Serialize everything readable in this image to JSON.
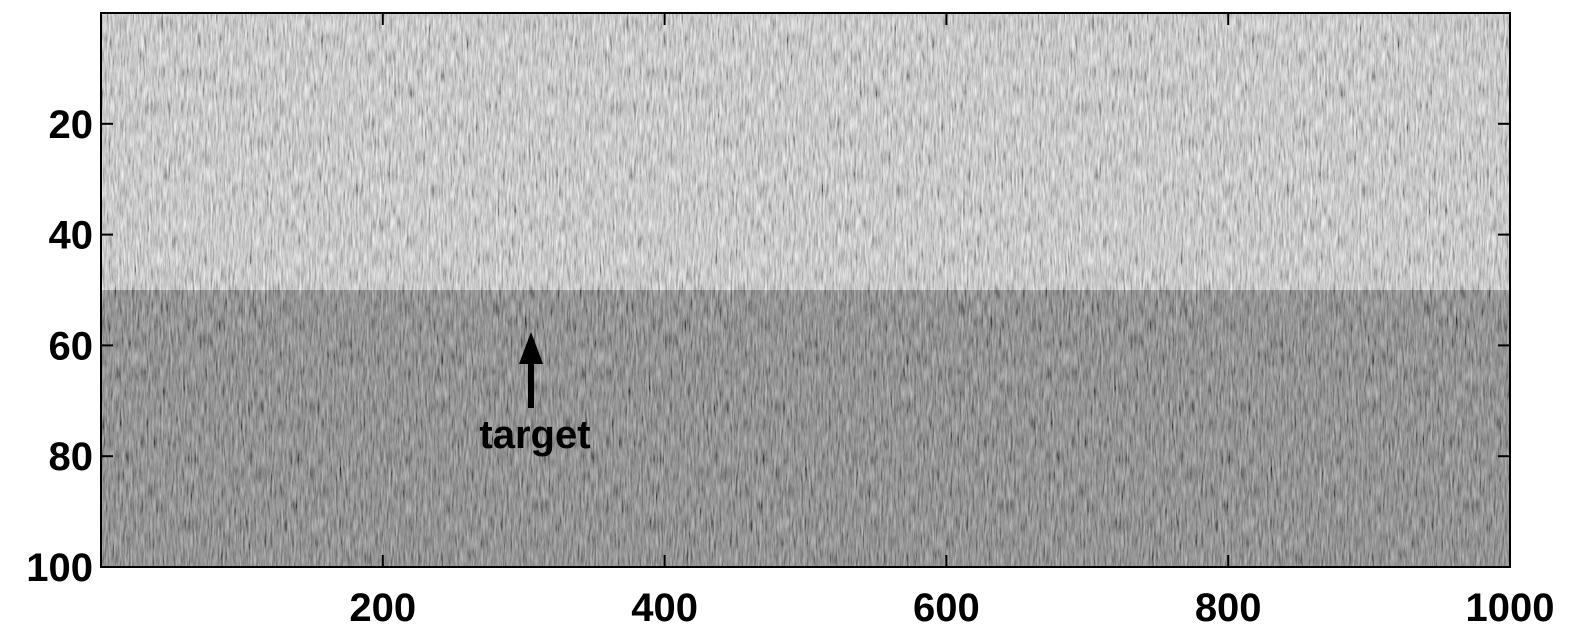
{
  "chart_data": {
    "type": "heatmap",
    "xlim": [
      0,
      1000
    ],
    "xticks": [
      200,
      400,
      600,
      800,
      1000
    ],
    "ylim": [
      0,
      100
    ],
    "yticks": [
      20,
      40,
      60,
      80,
      100
    ],
    "y_reversed": true,
    "colormap": "gray",
    "annotation": "target"
  }
}
